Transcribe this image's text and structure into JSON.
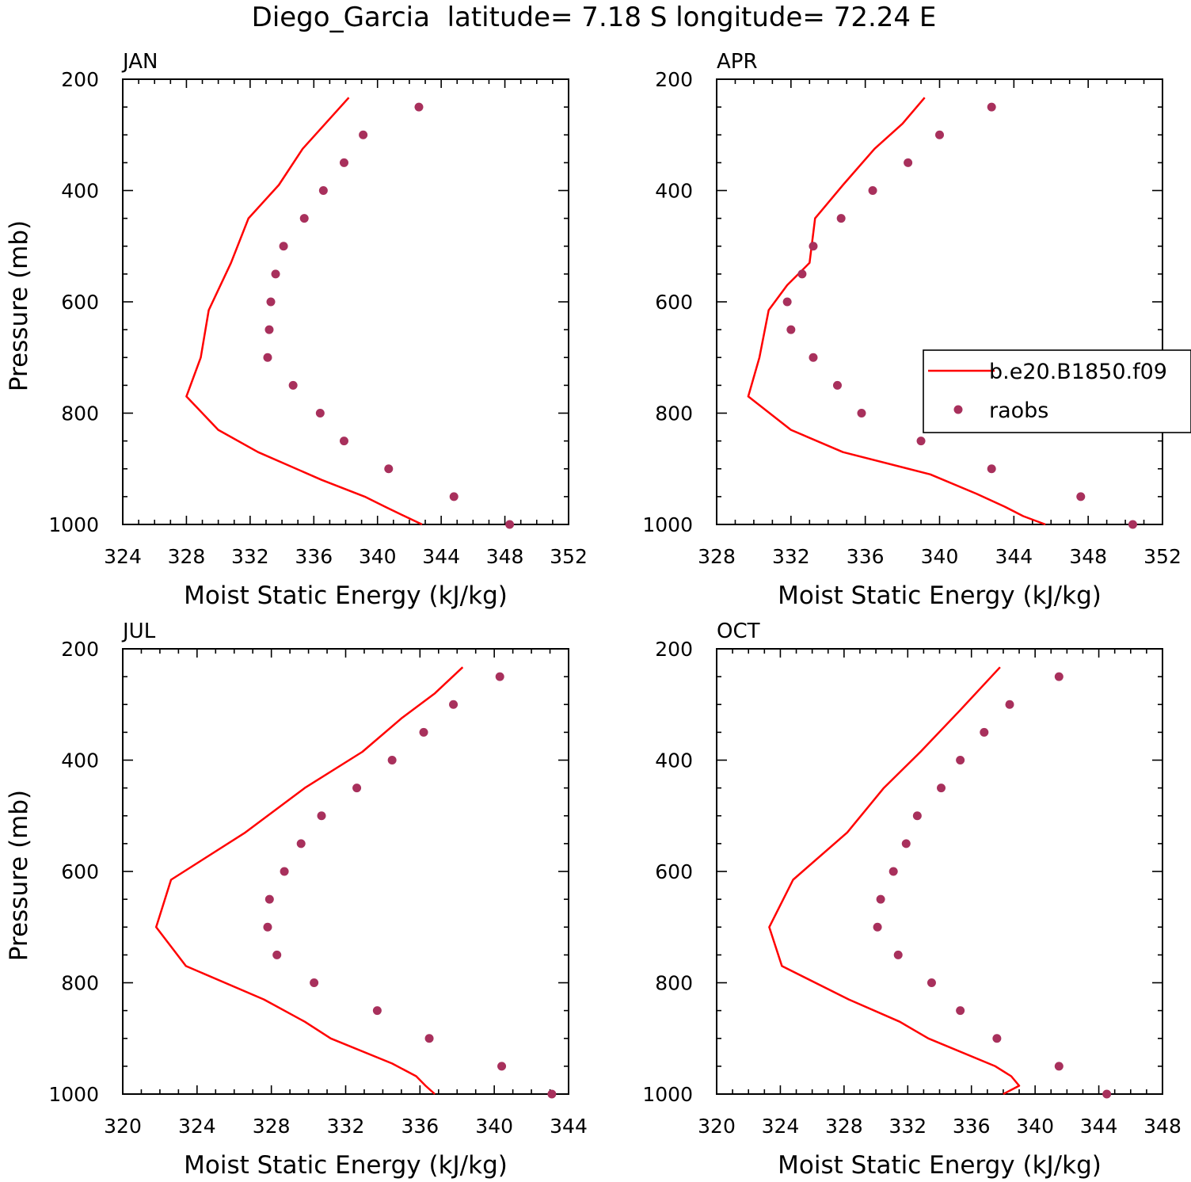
{
  "figure": {
    "title": "Diego_Garcia  latitude= 7.18 S longitude= 72.24 E"
  },
  "legend": {
    "model_label": "b.e20.B1850.f09",
    "obs_label": "raobs",
    "model_color": "#ff0000",
    "obs_color": "#a8305c"
  },
  "chart_data": [
    {
      "type": "line",
      "label": "JAN",
      "xlabel": "Moist Static Energy (kJ/kg)",
      "ylabel": "Pressure (mb)",
      "xlim": [
        324,
        352
      ],
      "ylim": [
        1000,
        200
      ],
      "xticks": [
        324,
        328,
        332,
        336,
        340,
        344,
        348,
        352
      ],
      "yticks": [
        200,
        400,
        600,
        800,
        1000
      ],
      "legend": false,
      "series": [
        {
          "name": "b.e20.B1850.f09",
          "style": "line",
          "x": [
            338.2,
            335.3,
            333.8,
            331.9,
            330.8,
            329.4,
            328.9,
            328.0,
            330.0,
            332.5,
            336.5,
            339.2,
            340.6,
            341.7,
            342.8
          ],
          "y": [
            233,
            325,
            390,
            450,
            530,
            615,
            700,
            770,
            830,
            870,
            920,
            950,
            970,
            985,
            1000
          ]
        },
        {
          "name": "raobs",
          "style": "markers",
          "x": [
            342.6,
            339.1,
            337.9,
            336.6,
            335.4,
            334.1,
            333.6,
            333.3,
            333.2,
            333.1,
            334.7,
            336.4,
            337.9,
            340.7,
            344.8,
            348.3
          ],
          "y": [
            250,
            300,
            350,
            400,
            450,
            500,
            550,
            600,
            650,
            700,
            750,
            800,
            850,
            900,
            950,
            1000
          ]
        }
      ]
    },
    {
      "type": "line",
      "label": "APR",
      "xlabel": "Moist Static Energy (kJ/kg)",
      "ylabel": "",
      "xlim": [
        328,
        352
      ],
      "ylim": [
        1000,
        200
      ],
      "xticks": [
        328,
        332,
        336,
        340,
        344,
        348,
        352
      ],
      "yticks": [
        200,
        400,
        600,
        800,
        1000
      ],
      "legend": true,
      "series": [
        {
          "name": "b.e20.B1850.f09",
          "style": "line",
          "x": [
            339.2,
            338.0,
            336.5,
            334.8,
            333.3,
            333.0,
            331.8,
            330.8,
            330.3,
            329.7,
            332.0,
            334.8,
            339.5,
            342.0,
            343.5,
            344.5,
            345.7
          ],
          "y": [
            233,
            280,
            325,
            390,
            450,
            530,
            570,
            615,
            700,
            770,
            830,
            870,
            910,
            945,
            968,
            985,
            1000
          ]
        },
        {
          "name": "raobs",
          "style": "markers",
          "x": [
            342.8,
            340.0,
            338.3,
            336.4,
            334.7,
            333.2,
            332.6,
            331.8,
            332.0,
            333.2,
            334.5,
            335.8,
            339.0,
            342.8,
            347.6,
            350.4
          ],
          "y": [
            250,
            300,
            350,
            400,
            450,
            500,
            550,
            600,
            650,
            700,
            750,
            800,
            850,
            900,
            950,
            1000
          ]
        }
      ]
    },
    {
      "type": "line",
      "label": "JUL",
      "xlabel": "Moist Static Energy (kJ/kg)",
      "ylabel": "Pressure (mb)",
      "xlim": [
        320,
        344
      ],
      "ylim": [
        1000,
        200
      ],
      "xticks": [
        320,
        324,
        328,
        332,
        336,
        340,
        344
      ],
      "yticks": [
        200,
        400,
        600,
        800,
        1000
      ],
      "legend": false,
      "series": [
        {
          "name": "b.e20.B1850.f09",
          "style": "line",
          "x": [
            338.3,
            336.8,
            335.0,
            332.9,
            329.8,
            326.6,
            322.6,
            321.8,
            323.4,
            327.6,
            329.8,
            331.2,
            334.5,
            335.8,
            336.3,
            336.8
          ],
          "y": [
            233,
            280,
            325,
            385,
            450,
            530,
            615,
            700,
            770,
            830,
            870,
            900,
            945,
            968,
            985,
            1000
          ]
        },
        {
          "name": "raobs",
          "style": "markers",
          "x": [
            340.3,
            337.8,
            336.2,
            334.5,
            332.6,
            330.7,
            329.6,
            328.7,
            327.9,
            327.8,
            328.3,
            330.3,
            333.7,
            336.5,
            340.4,
            343.1
          ],
          "y": [
            250,
            300,
            350,
            400,
            450,
            500,
            550,
            600,
            650,
            700,
            750,
            800,
            850,
            900,
            950,
            1000
          ]
        }
      ]
    },
    {
      "type": "line",
      "label": "OCT",
      "xlabel": "Moist Static Energy (kJ/kg)",
      "ylabel": "",
      "xlim": [
        320,
        348
      ],
      "ylim": [
        1000,
        200
      ],
      "xticks": [
        320,
        324,
        328,
        332,
        336,
        340,
        344,
        348
      ],
      "yticks": [
        200,
        400,
        600,
        800,
        1000
      ],
      "legend": false,
      "series": [
        {
          "name": "b.e20.B1850.f09",
          "style": "line",
          "x": [
            337.8,
            335.3,
            332.8,
            330.5,
            328.2,
            324.8,
            323.3,
            324.1,
            328.3,
            331.5,
            333.3,
            337.5,
            338.5,
            339.0,
            338.0
          ],
          "y": [
            233,
            310,
            385,
            450,
            530,
            615,
            700,
            770,
            830,
            870,
            900,
            950,
            968,
            985,
            1000
          ]
        },
        {
          "name": "raobs",
          "style": "markers",
          "x": [
            341.5,
            338.4,
            336.8,
            335.3,
            334.1,
            332.6,
            331.9,
            331.1,
            330.3,
            330.1,
            331.4,
            333.5,
            335.3,
            337.6,
            341.5,
            344.5
          ],
          "y": [
            250,
            300,
            350,
            400,
            450,
            500,
            550,
            600,
            650,
            700,
            750,
            800,
            850,
            900,
            950,
            1000
          ]
        }
      ]
    }
  ]
}
